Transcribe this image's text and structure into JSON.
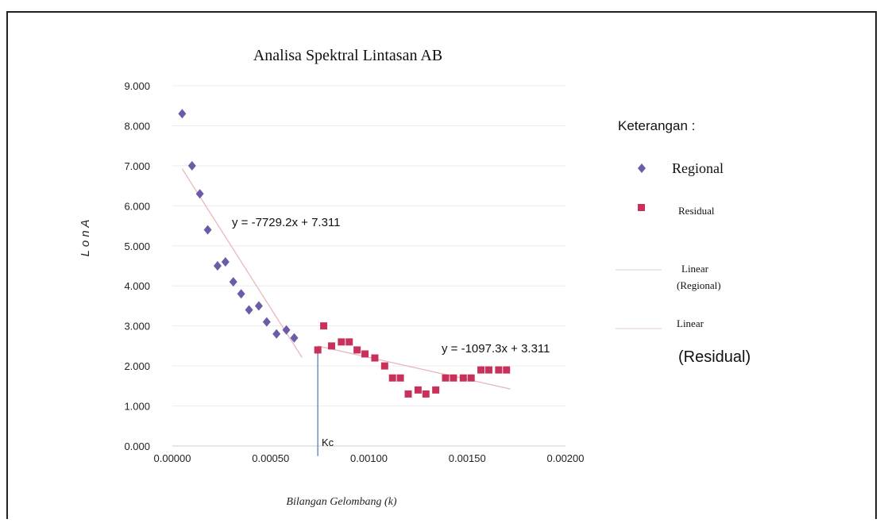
{
  "chart_data": {
    "type": "scatter",
    "title": "Analisa Spektral Lintasan AB",
    "xlabel": "Bilangan Gelombang (k)",
    "ylabel": "L o n  A",
    "xlim": [
      0,
      0.002
    ],
    "ylim": [
      0,
      9
    ],
    "x_ticks": [
      "0.00000",
      "0.00050",
      "0.00100",
      "0.00150",
      "0.00200"
    ],
    "y_ticks": [
      "0.000",
      "1.000",
      "2.000",
      "3.000",
      "4.000",
      "5.000",
      "6.000",
      "7.000",
      "8.000",
      "9.000"
    ],
    "grid": "horizontal",
    "legend_title": "Keterangan :",
    "legend_position": "right",
    "series": [
      {
        "name": "Regional",
        "marker": "diamond",
        "color": "#6b5ba8",
        "x": [
          5e-05,
          0.0001,
          0.00014,
          0.00018,
          0.00023,
          0.00027,
          0.00031,
          0.00035,
          0.00039,
          0.00044,
          0.00048,
          0.00053,
          0.00058,
          0.00062
        ],
        "y": [
          8.3,
          7.0,
          6.3,
          5.4,
          4.5,
          4.6,
          4.1,
          3.8,
          3.4,
          3.5,
          3.1,
          2.8,
          2.9,
          2.7
        ]
      },
      {
        "name": "Residual",
        "marker": "square",
        "color": "#c8325a",
        "x": [
          0.00074,
          0.00077,
          0.00081,
          0.00086,
          0.0009,
          0.00094,
          0.00098,
          0.00103,
          0.00108,
          0.00112,
          0.00116,
          0.0012,
          0.00125,
          0.00129,
          0.00134,
          0.00139,
          0.00143,
          0.00148,
          0.00152,
          0.00157,
          0.00161,
          0.00166,
          0.0017
        ],
        "y": [
          2.4,
          3.0,
          2.5,
          2.6,
          2.6,
          2.4,
          2.3,
          2.2,
          2.0,
          1.7,
          1.7,
          1.3,
          1.4,
          1.3,
          1.4,
          1.7,
          1.7,
          1.7,
          1.7,
          1.9,
          1.9,
          1.9,
          1.9
        ]
      }
    ],
    "trendlines": [
      {
        "name": "Linear (Regional)",
        "slope": -7729.2,
        "intercept": 7.311,
        "x_range": [
          5e-05,
          0.00066
        ],
        "color": "#e8b8bc",
        "equation": "y = -7729.2x + 7.311"
      },
      {
        "name": "Linear (Residual)",
        "slope": -1097.3,
        "intercept": 3.311,
        "x_range": [
          0.00074,
          0.00172
        ],
        "color": "#e8b8bc",
        "equation": "y = -1097.3x + 3.311"
      }
    ],
    "annotations": [
      {
        "text": "Kc",
        "x": 0.00074,
        "color": "#6f8fbf"
      }
    ]
  },
  "legend": {
    "title": "Keterangan :",
    "regional": "Regional",
    "residual": "Residual",
    "linear_regional_1": "Linear",
    "linear_regional_2": "(Regional)",
    "linear_residual_1": "Linear",
    "linear_residual_2": "(Residual)"
  }
}
